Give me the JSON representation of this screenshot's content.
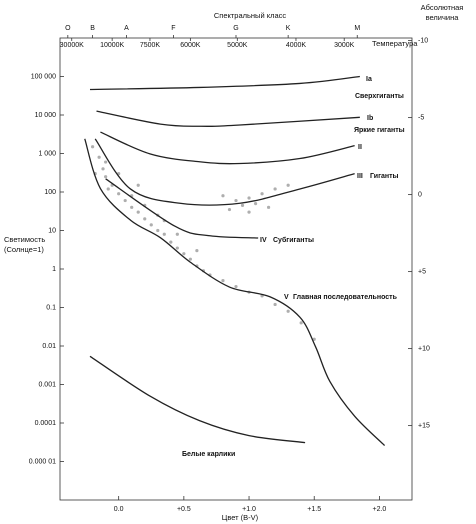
{
  "chart_data": {
    "type": "line",
    "x2label": "Спектральный класс",
    "x3label": "Температура",
    "y2label": [
      "Абсолютная",
      "величина"
    ],
    "ylabel": [
      "Светимость",
      "(Солнце=1)"
    ],
    "xlabel": "Цвет (B-V)",
    "xlim": [
      -0.45,
      2.25
    ],
    "xticks": [
      {
        "value": 0,
        "label": "0.0"
      },
      {
        "value": 0.5,
        "label": "+0.5"
      },
      {
        "value": 1,
        "label": "+1.0"
      },
      {
        "value": 1.5,
        "label": "+1.5"
      },
      {
        "value": 2,
        "label": "+2.0"
      }
    ],
    "ylog": true,
    "ylim": [
      1e-06,
      1000000
    ],
    "yticks": [
      {
        "value": 100000,
        "label": "100 000"
      },
      {
        "value": 10000,
        "label": "10 000"
      },
      {
        "value": 1000,
        "label": "1 000"
      },
      100,
      10,
      1,
      0.1,
      0.01,
      0.001,
      0.0001,
      {
        "value": 1e-05,
        "label": "0.000 01"
      }
    ],
    "y2lim": [
      19.83,
      -10.17
    ],
    "y2ticks": [
      -10,
      -5,
      0,
      {
        "value": 5,
        "label": "+5"
      },
      {
        "value": 10,
        "label": "+10"
      },
      {
        "value": 15,
        "label": "+15"
      }
    ],
    "spectral_ticks": [
      {
        "value": -0.39,
        "label": "O"
      },
      {
        "value": -0.2,
        "label": "B"
      },
      {
        "value": 0.06,
        "label": "A"
      },
      {
        "value": 0.42,
        "label": "F"
      },
      {
        "value": 0.9,
        "label": "G"
      },
      {
        "value": 1.3,
        "label": "K"
      },
      {
        "value": 1.83,
        "label": "M"
      }
    ],
    "temperature_ticks": [
      {
        "value": -0.36,
        "label": "30000K"
      },
      {
        "value": -0.05,
        "label": "10000K"
      },
      {
        "value": 0.24,
        "label": "7500K"
      },
      {
        "value": 0.55,
        "label": "6000K"
      },
      {
        "value": 0.91,
        "label": "5000K"
      },
      {
        "value": 1.36,
        "label": "4000K"
      },
      {
        "value": 1.73,
        "label": "3000K"
      }
    ],
    "series": [
      {
        "type": "scatter",
        "color": "#8c8c8c",
        "x": [
          -0.2,
          -0.15,
          -0.12,
          -0.1,
          -0.05,
          0,
          0.05,
          0.1,
          0.15,
          0.2,
          0.25,
          0.3,
          0.35,
          0.4,
          0.45,
          0.5,
          0.55,
          0.6,
          0.65,
          0.7,
          0.8,
          0.9,
          1,
          1.1,
          1.2,
          1.3,
          1.4,
          1.5,
          -0.18,
          -0.08,
          0.1,
          0.2,
          0.3,
          0.35,
          0.45,
          0.6,
          0.9,
          0.95,
          1,
          1.05,
          1.1,
          1.15,
          1.2,
          0.85,
          1,
          1.3,
          0.8,
          -0.1,
          0,
          0.15
        ],
        "values": [
          1500,
          800,
          400,
          250,
          150,
          90,
          60,
          40,
          30,
          20,
          14,
          10,
          8,
          5,
          3.5,
          2.5,
          1.8,
          1.2,
          0.9,
          0.7,
          0.5,
          0.35,
          0.25,
          0.2,
          0.12,
          0.08,
          0.04,
          0.015,
          300,
          120,
          80,
          45,
          25,
          18,
          8,
          3,
          60,
          45,
          70,
          50,
          90,
          40,
          120,
          35,
          30,
          150,
          80,
          600,
          300,
          150
        ]
      },
      {
        "name": "Ia",
        "color": "#222222",
        "x": [
          -0.22,
          0.62,
          1.39,
          1.85
        ],
        "values": [
          46000,
          52000,
          66000,
          100000
        ]
      },
      {
        "name": "Ib",
        "color": "#222222",
        "x": [
          -0.17,
          0.32,
          0.62,
          0.93,
          1.85
        ],
        "values": [
          12600,
          5800,
          5100,
          5500,
          8700
        ]
      },
      {
        "name": "II",
        "color": "#222222",
        "x": [
          -0.14,
          0.24,
          0.62,
          0.93,
          1.39,
          1.81
        ],
        "values": [
          3600,
          980,
          610,
          550,
          740,
          1600
        ]
      },
      {
        "name": "III",
        "color": "#222222",
        "x": [
          -0.18,
          0.09,
          0.47,
          0.93,
          1.39,
          1.81
        ],
        "values": [
          2400,
          120,
          51,
          51,
          120,
          300
        ]
      },
      {
        "name": "IV",
        "color": "#222222",
        "x": [
          -0.1,
          0.43,
          0.7,
          1.07
        ],
        "values": [
          220,
          13,
          7.3,
          6.4
        ]
      },
      {
        "name": "V",
        "color": "#222222",
        "x": [
          -0.26,
          -0.14,
          0.09,
          0.32,
          0.55,
          0.85,
          1.16,
          1.39,
          1.51,
          1.62,
          1.81,
          2.04
        ],
        "values": [
          2400,
          123,
          18.6,
          6.5,
          1.5,
          0.34,
          0.19,
          0.056,
          0.0096,
          0.0012,
          0.00015,
          2.6e-05
        ]
      },
      {
        "color": "#222222",
        "x": [
          -0.22,
          0.24,
          0.62,
          1.0,
          1.43
        ],
        "values": [
          0.0054,
          0.0005,
          0.000115,
          4.7e-05,
          3.1e-05
        ]
      }
    ],
    "annotations": [
      "Сверхгиганты",
      "Яркие гиганты",
      "Гиганты",
      "Субгиганты",
      "Главная последовательность",
      "Белые карлики"
    ]
  }
}
